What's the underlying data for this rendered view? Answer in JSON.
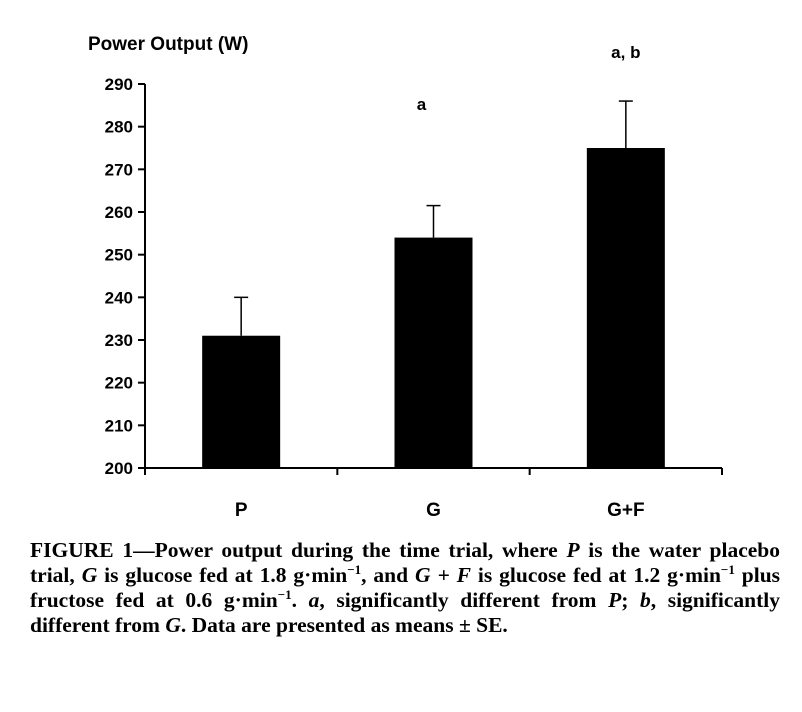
{
  "chart_data": {
    "type": "bar",
    "ylabel": "Power Output (W)",
    "xlabel": "",
    "title": "",
    "categories": [
      "P",
      "G",
      "G+F"
    ],
    "values": [
      231,
      254,
      275
    ],
    "errors": [
      9,
      7.5,
      11
    ],
    "annotations": [
      "",
      "a",
      "a, b"
    ],
    "ylim": [
      200,
      290
    ],
    "yticks": [
      200,
      210,
      220,
      230,
      240,
      250,
      260,
      270,
      280,
      290
    ],
    "grid": false,
    "bar_color": "#000000"
  },
  "caption": {
    "label": "FIGURE 1",
    "dash": "—",
    "t1": "Power output during the time trial, where ",
    "v1": "P",
    "t2": " is the water placebo trial, ",
    "v2": "G",
    "t3": " is glucose fed at 1.8 g·min",
    "e1": "−1",
    "t4": ", and ",
    "v3": "G + F",
    "t5": " is glucose fed at 1.2 g·min",
    "e2": "−1",
    "t6": " plus fructose fed at 0.6 g·min",
    "e3": "−1",
    "t7": ". ",
    "v4": "a",
    "t8": ", significantly different from ",
    "v5": "P",
    "t9": "; ",
    "v6": "b",
    "t10": ", significantly different from ",
    "v7": "G",
    "t11": ". Data are presented as means ± SE."
  }
}
